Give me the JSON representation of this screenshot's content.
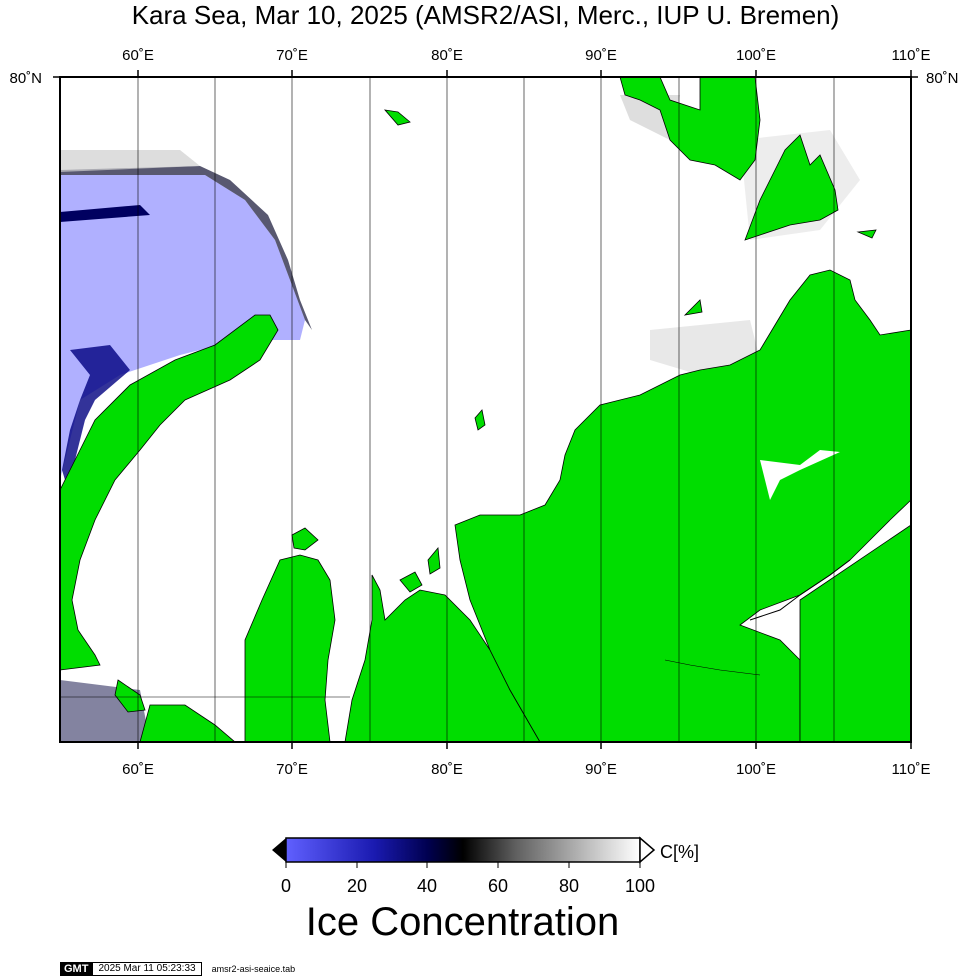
{
  "title": "Kara Sea, Mar 10, 2025 (AMSR2/ASI, Merc., IUP U. Bremen)",
  "map": {
    "top_lon_labels": [
      "60˚E",
      "70˚E",
      "80˚E",
      "90˚E",
      "100˚E",
      "110˚E"
    ],
    "bottom_lon_labels": [
      "60˚E",
      "70˚E",
      "80˚E",
      "90˚E",
      "100˚E",
      "110˚E"
    ],
    "lat_label_left": "80˚N",
    "lat_label_right": "80˚N",
    "colors": {
      "land": "#00dd00",
      "open_water": "#b0b0ff",
      "ice_full": "#ffffff"
    }
  },
  "colorbar": {
    "unit_label": "C[%]",
    "ticks": [
      "0",
      "20",
      "40",
      "60",
      "80",
      "100"
    ],
    "title": "Ice Concentration"
  },
  "footer": {
    "logo": "GMT",
    "timestamp": "2025 Mar 11 05:23:33",
    "filename": "amsr2-asi-seaice.tab"
  }
}
